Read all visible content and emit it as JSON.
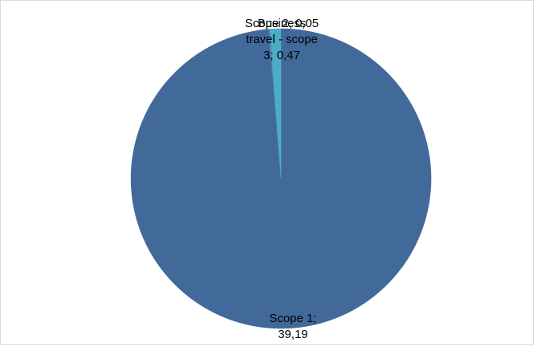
{
  "chart_data": {
    "type": "pie",
    "slices": [
      {
        "name": "Scope 1",
        "value": 39.19,
        "value_text": "39,19",
        "color": "#41699A",
        "label_lines": [
          "Scope 1;",
          "39,19"
        ]
      },
      {
        "name": "Scope 2",
        "value": 0.05,
        "value_text": "0,05",
        "color": "#4F81BD",
        "label_lines": [
          "Scope 2; 0,05"
        ]
      },
      {
        "name": "Business travel - scope 3",
        "value": 0.47,
        "value_text": "0,47",
        "color": "#4BACC6",
        "label_lines": [
          "Business",
          "travel - scope",
          "3; 0,47"
        ]
      }
    ],
    "legend": "none",
    "start_angle": "12 o'clock",
    "direction": "clockwise"
  }
}
